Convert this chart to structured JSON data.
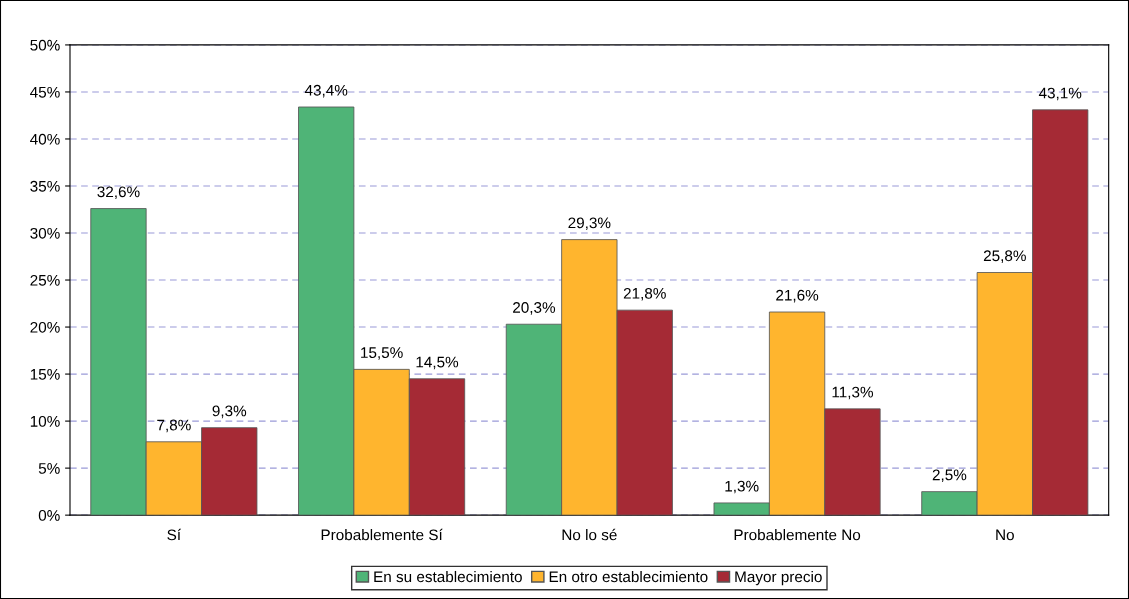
{
  "chart_data": {
    "type": "bar",
    "categories": [
      "Sí",
      "Probablemente Sí",
      "No lo sé",
      "Probablemente No",
      "No"
    ],
    "series": [
      {
        "name": "En su establecimiento",
        "color": "#4fb477",
        "values": [
          32.6,
          43.4,
          20.3,
          1.3,
          2.5
        ],
        "value_labels": [
          "32,6%",
          "43,4%",
          "20,3%",
          "1,3%",
          "2,5%"
        ]
      },
      {
        "name": "En otro establecimiento",
        "color": "#ffb52e",
        "values": [
          7.8,
          15.5,
          29.3,
          21.6,
          25.8
        ],
        "value_labels": [
          "7,8%",
          "15,5%",
          "29,3%",
          "21,6%",
          "25,8%"
        ]
      },
      {
        "name": "Mayor precio",
        "color": "#a52a35",
        "values": [
          9.3,
          14.5,
          21.8,
          11.3,
          43.1
        ],
        "value_labels": [
          "9,3%",
          "14,5%",
          "21,8%",
          "11,3%",
          "43,1%"
        ]
      }
    ],
    "ylim": [
      0,
      50
    ],
    "yticks": [
      {
        "value": 0,
        "label": "0%"
      },
      {
        "value": 5,
        "label": "5%"
      },
      {
        "value": 10,
        "label": "10%"
      },
      {
        "value": 15,
        "label": "15%"
      },
      {
        "value": 20,
        "label": "20%"
      },
      {
        "value": 25,
        "label": "25%"
      },
      {
        "value": 30,
        "label": "30%"
      },
      {
        "value": 35,
        "label": "35%"
      },
      {
        "value": 40,
        "label": "40%"
      },
      {
        "value": 45,
        "label": "45%"
      },
      {
        "value": 50,
        "label": "50%"
      }
    ],
    "grid": "y",
    "legend": "bottom"
  }
}
